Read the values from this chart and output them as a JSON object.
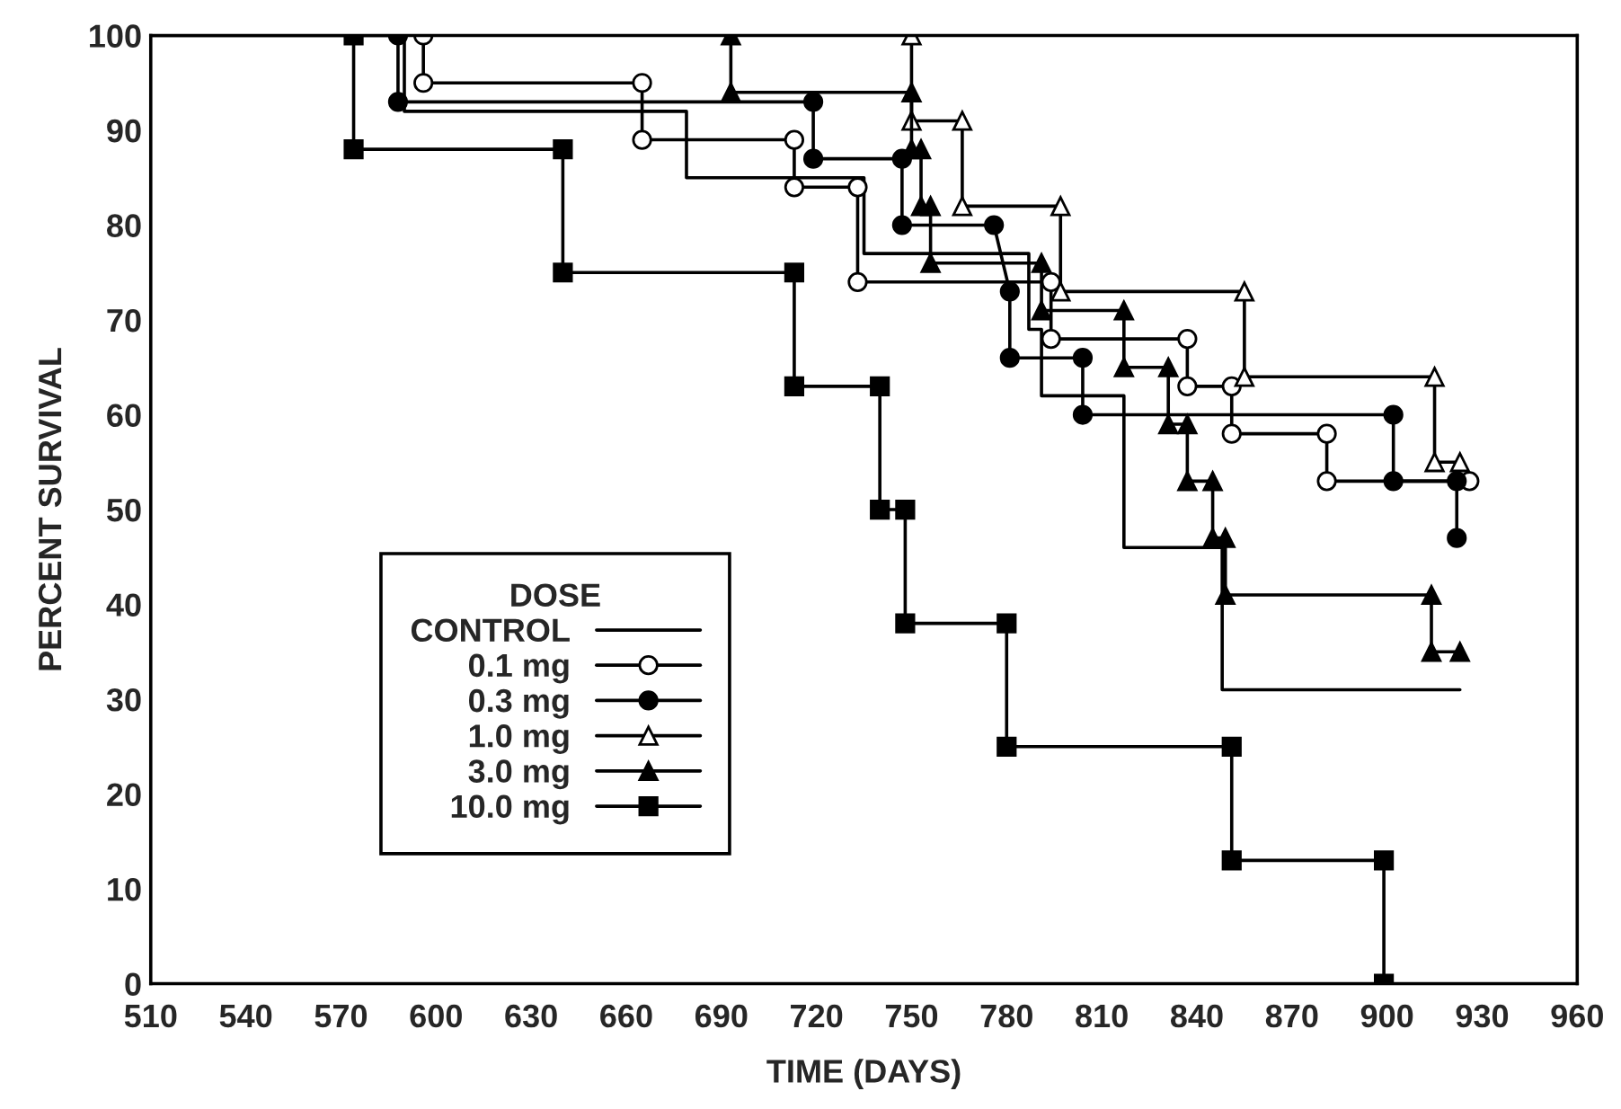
{
  "chart_data": {
    "type": "line",
    "xlabel": "TIME (DAYS)",
    "ylabel": "PERCENT SURVIVAL",
    "legend_title": "DOSE",
    "legend": "bottom left",
    "grid": false,
    "xlim": [
      510,
      960
    ],
    "xticks": [
      510,
      540,
      570,
      600,
      630,
      660,
      690,
      720,
      750,
      780,
      810,
      840,
      870,
      900,
      930,
      960
    ],
    "ylim": [
      0,
      100
    ],
    "yticks": [
      0,
      10,
      20,
      30,
      40,
      50,
      60,
      70,
      80,
      90,
      100
    ],
    "series": [
      {
        "name": "CONTROL",
        "color": "#000000",
        "marker": "none",
        "x": [
          510,
          590,
          590,
          679,
          679,
          735,
          735,
          787,
          787,
          791,
          791,
          817,
          817,
          848,
          848,
          923
        ],
        "values": [
          100,
          100,
          92,
          92,
          85,
          85,
          77,
          77,
          69,
          69,
          62,
          62,
          46,
          46,
          31,
          31
        ]
      },
      {
        "name": "0.1 mg",
        "color": "#000000",
        "marker": "circle",
        "x": [
          596,
          596,
          665,
          665,
          713,
          713,
          733,
          733,
          794,
          794,
          837,
          837,
          851,
          851,
          881,
          881,
          926
        ],
        "values": [
          100,
          95,
          95,
          89,
          89,
          84,
          84,
          74,
          74,
          68,
          68,
          63,
          63,
          58,
          58,
          53,
          53
        ]
      },
      {
        "name": "0.3 mg",
        "color": "#000000",
        "marker": "circle",
        "x": [
          588,
          588,
          719,
          719,
          747,
          747,
          776,
          781,
          781,
          804,
          804,
          902,
          902,
          922,
          922
        ],
        "values": [
          100,
          93,
          93,
          87,
          87,
          80,
          80,
          73,
          66,
          66,
          60,
          60,
          53,
          53,
          47
        ]
      },
      {
        "name": "1.0 mg",
        "color": "#000000",
        "marker": "triangle",
        "x": [
          750,
          750,
          766,
          766,
          797,
          797,
          855,
          855,
          915,
          915,
          923
        ],
        "values": [
          100,
          91,
          91,
          82,
          82,
          73,
          73,
          64,
          64,
          55,
          55
        ]
      },
      {
        "name": "3.0 mg",
        "color": "#000000",
        "marker": "triangle",
        "x": [
          693,
          693,
          750,
          750,
          753,
          753,
          756,
          756,
          791,
          791,
          817,
          817,
          831,
          831,
          837,
          837,
          845,
          845,
          849,
          849,
          914,
          914,
          923
        ],
        "values": [
          100,
          94,
          94,
          88,
          88,
          82,
          82,
          76,
          76,
          71,
          71,
          65,
          65,
          59,
          59,
          53,
          53,
          47,
          47,
          41,
          41,
          35,
          35
        ]
      },
      {
        "name": "10.0 mg",
        "color": "#000000",
        "marker": "square",
        "x": [
          574,
          574,
          640,
          640,
          713,
          713,
          740,
          740,
          748,
          748,
          780,
          780,
          851,
          851,
          899,
          899
        ],
        "values": [
          100,
          88,
          88,
          75,
          75,
          63,
          63,
          50,
          50,
          38,
          38,
          25,
          25,
          13,
          13,
          0
        ]
      }
    ]
  }
}
